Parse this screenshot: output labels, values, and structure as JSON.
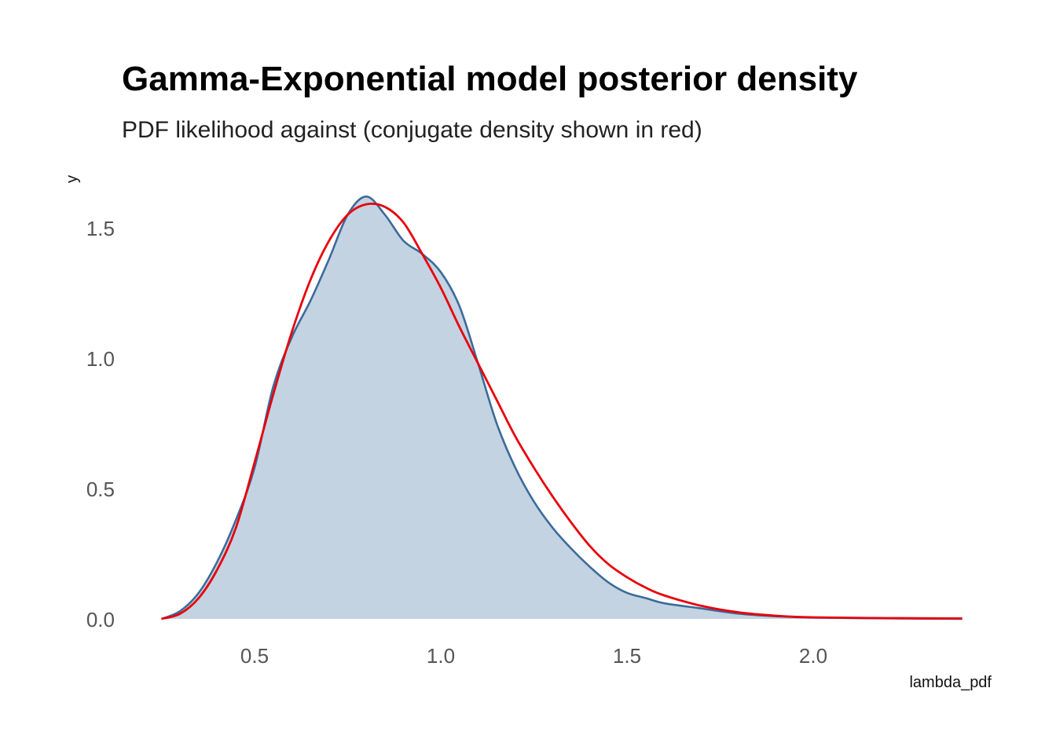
{
  "chart_data": {
    "type": "area",
    "title": "Gamma-Exponential model posterior density",
    "subtitle": "PDF likelihood against (conjugate density shown in red)",
    "xlabel": "lambda_pdf",
    "ylabel": "y",
    "xlim": [
      0.25,
      2.4
    ],
    "ylim": [
      0,
      1.62
    ],
    "x_ticks": [
      0.5,
      1.0,
      1.5,
      2.0
    ],
    "x_tick_labels": [
      "0.5",
      "1.0",
      "1.5",
      "2.0"
    ],
    "y_ticks": [
      0.0,
      0.5,
      1.0,
      1.5
    ],
    "y_tick_labels": [
      "0.0",
      "0.5",
      "1.0",
      "1.5"
    ],
    "grid": false,
    "colors": {
      "density_fill": "#c3d3e2",
      "density_line": "#3c6b9a",
      "conjugate": "#e8000b"
    },
    "series": [
      {
        "role": "density",
        "x": [
          0.25,
          0.3,
          0.35,
          0.4,
          0.45,
          0.5,
          0.55,
          0.6,
          0.65,
          0.7,
          0.75,
          0.8,
          0.85,
          0.9,
          0.95,
          1.0,
          1.05,
          1.1,
          1.15,
          1.2,
          1.25,
          1.3,
          1.35,
          1.4,
          1.45,
          1.5,
          1.55,
          1.6,
          1.7,
          1.8,
          1.9,
          2.0,
          2.2,
          2.4
        ],
        "y": [
          0.0,
          0.03,
          0.1,
          0.22,
          0.38,
          0.58,
          0.89,
          1.08,
          1.22,
          1.38,
          1.55,
          1.62,
          1.55,
          1.45,
          1.4,
          1.33,
          1.2,
          0.98,
          0.75,
          0.58,
          0.45,
          0.35,
          0.27,
          0.2,
          0.14,
          0.1,
          0.08,
          0.06,
          0.04,
          0.02,
          0.01,
          0.005,
          0.002,
          0.0
        ]
      },
      {
        "role": "conjugate",
        "x": [
          0.25,
          0.3,
          0.35,
          0.4,
          0.45,
          0.5,
          0.55,
          0.6,
          0.65,
          0.7,
          0.75,
          0.8,
          0.85,
          0.9,
          0.95,
          1.0,
          1.05,
          1.1,
          1.15,
          1.2,
          1.25,
          1.3,
          1.35,
          1.4,
          1.45,
          1.5,
          1.55,
          1.6,
          1.7,
          1.8,
          1.9,
          2.0,
          2.2,
          2.4
        ],
        "y": [
          0.0,
          0.02,
          0.08,
          0.19,
          0.35,
          0.6,
          0.86,
          1.1,
          1.3,
          1.45,
          1.55,
          1.59,
          1.58,
          1.52,
          1.4,
          1.27,
          1.12,
          0.98,
          0.84,
          0.7,
          0.58,
          0.47,
          0.37,
          0.28,
          0.21,
          0.16,
          0.12,
          0.09,
          0.05,
          0.025,
          0.012,
          0.006,
          0.003,
          0.002
        ]
      }
    ]
  }
}
